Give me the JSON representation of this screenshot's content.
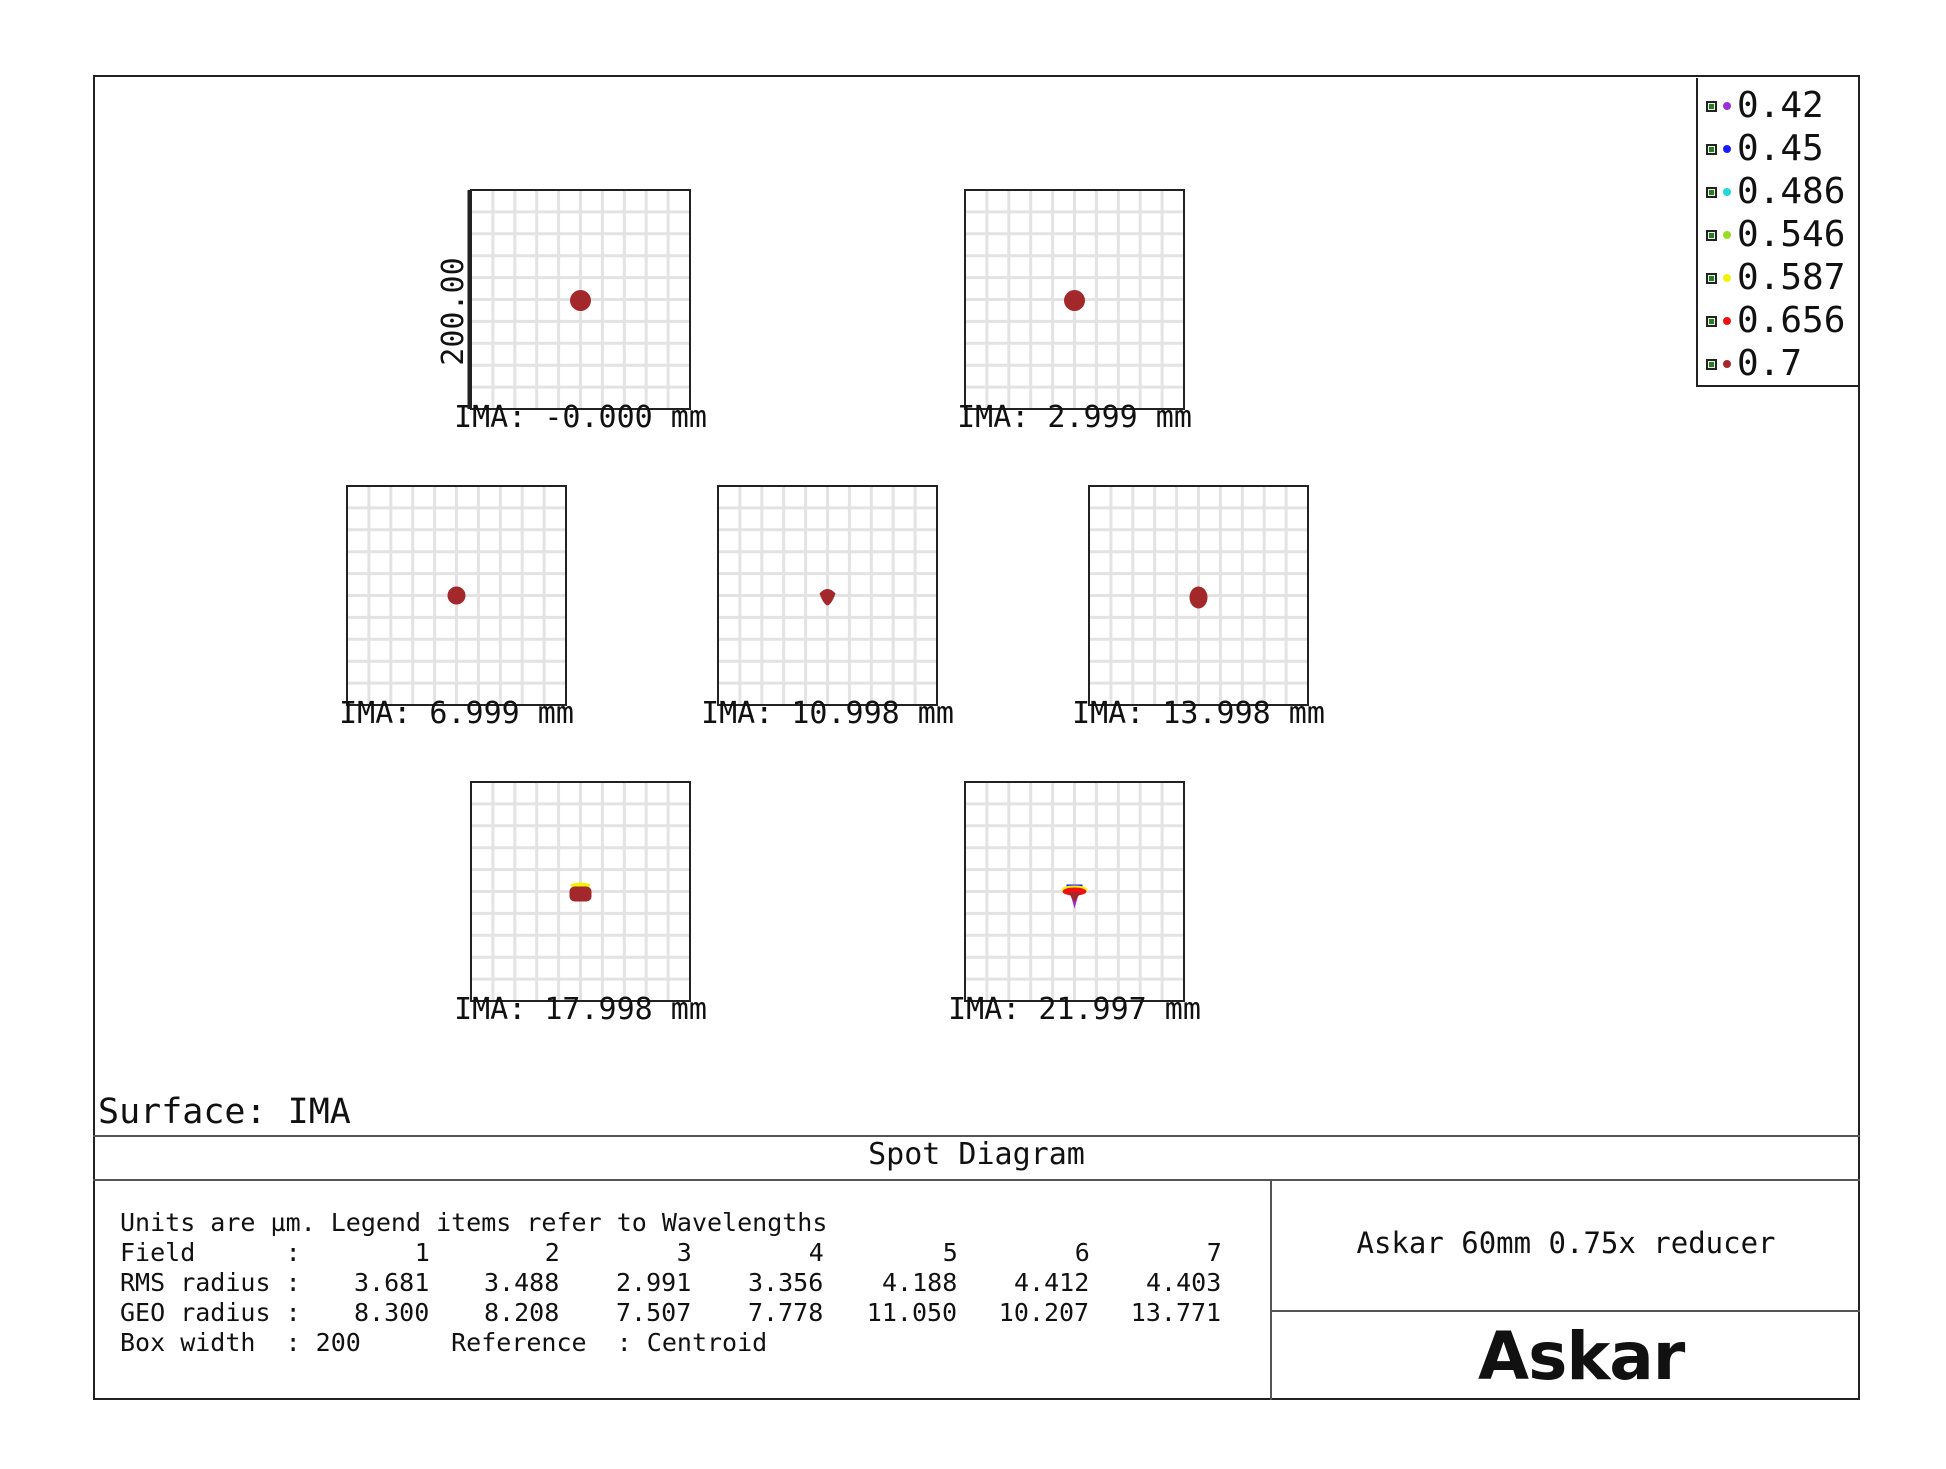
{
  "legend": [
    {
      "label": "0.42",
      "color": "#9b30d9"
    },
    {
      "label": "0.45",
      "color": "#1a1aff"
    },
    {
      "label": "0.486",
      "color": "#20d8d8"
    },
    {
      "label": "0.546",
      "color": "#99dd22"
    },
    {
      "label": "0.587",
      "color": "#f2f20a"
    },
    {
      "label": "0.656",
      "color": "#ee1111"
    },
    {
      "label": "0.7",
      "color": "#a3282b"
    }
  ],
  "scale_label": "200.00",
  "spots": [
    {
      "label": "IMA: -0.000 mm"
    },
    {
      "label": "IMA: 2.999 mm"
    },
    {
      "label": "IMA: 6.999 mm"
    },
    {
      "label": "IMA: 10.998 mm"
    },
    {
      "label": "IMA: 13.998 mm"
    },
    {
      "label": "IMA: 17.998 mm"
    },
    {
      "label": "IMA: 21.997 mm"
    }
  ],
  "surface": "Surface: IMA",
  "title": "Spot Diagram",
  "info": {
    "units_line": "Units are µm. Legend items refer to Wavelengths",
    "field_label": "Field      :",
    "field_values": [
      "1",
      "2",
      "3",
      "4",
      "5",
      "6",
      "7"
    ],
    "rms_label": "RMS radius :",
    "rms_values": [
      "3.681",
      "3.488",
      "2.991",
      "3.356",
      "4.188",
      "4.412",
      "4.403"
    ],
    "geo_label": "GEO radius :",
    "geo_values": [
      "8.300",
      "8.208",
      "7.507",
      "7.778",
      "11.050",
      "10.207",
      "13.771"
    ],
    "box_line": "Box width  : 200      Reference  : Centroid"
  },
  "project": "Askar 60mm 0.75x reducer",
  "logo": "Askar"
}
